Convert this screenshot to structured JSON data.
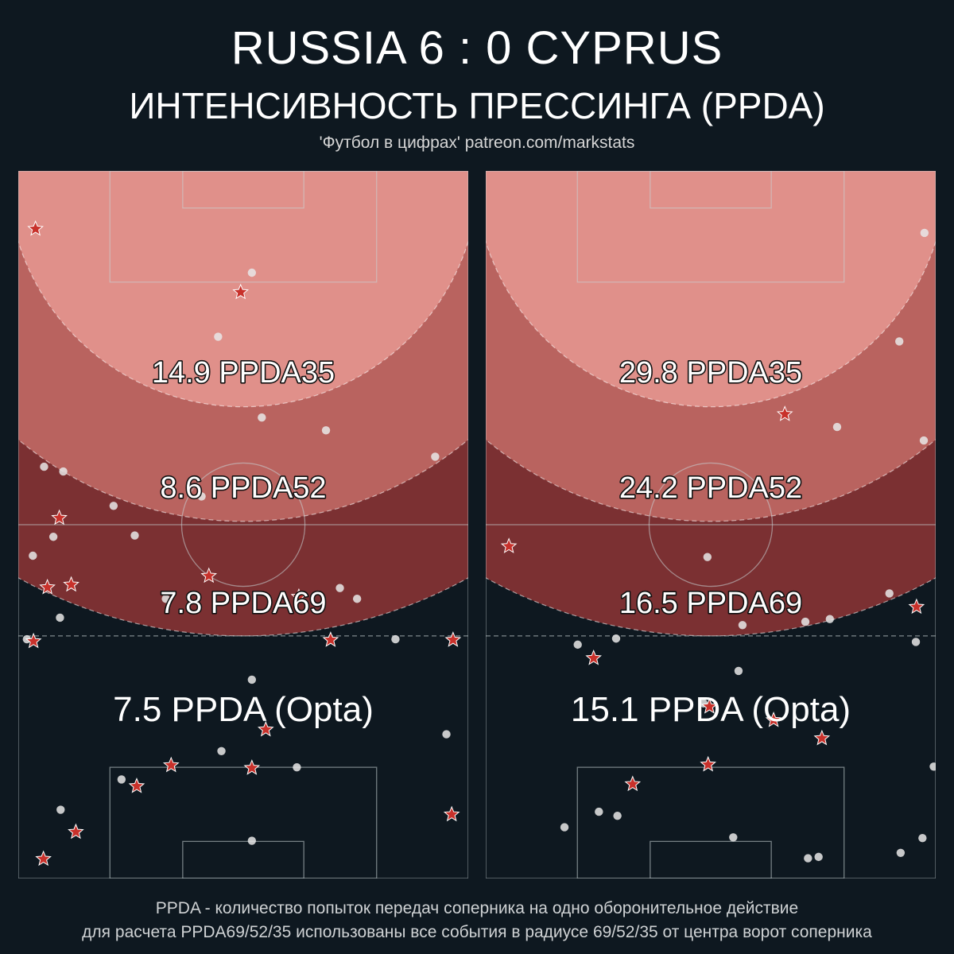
{
  "header": {
    "title": "RUSSIA  6 : 0  CYPRUS",
    "subtitle": "ИНТЕНСИВНОСТЬ ПРЕССИНГА (PPDA)",
    "source": "'Футбол в цифрах' patreon.com/markstats"
  },
  "footer": {
    "line1": "PPDA - количество попыток передач соперника на одно оборонительное действие",
    "line2": "для расчета PPDA69/52/35 использованы все события в радиусе 69/52/35 от центра ворот соперника"
  },
  "colors": {
    "background": "#0e1820",
    "zone35": "#e0908a",
    "zone52": "#b9635f",
    "zone69": "#7b3032",
    "star": "#c8312b",
    "dot": "#e8e8e8"
  },
  "chart_data": [
    {
      "type": "scatter",
      "team": "RUSSIA",
      "labels": {
        "ppda35": "14.9 PPDA35",
        "ppda52": "8.6 PPDA52",
        "ppda69": "7.8 PPDA69",
        "opta": "7.5 PPDA (Opta)"
      },
      "values": {
        "ppda35": 14.9,
        "ppda52": 8.6,
        "ppda69": 7.8,
        "opta": 7.5
      },
      "x_range": [
        0,
        68
      ],
      "y_range": [
        0,
        105
      ],
      "stars": [
        [
          2.6,
          8.6
        ],
        [
          33.6,
          18.0
        ],
        [
          6.2,
          51.5
        ],
        [
          4.4,
          61.8
        ],
        [
          8.0,
          61.4
        ],
        [
          28.8,
          60.1
        ],
        [
          42.4,
          63.2
        ],
        [
          2.3,
          69.8
        ],
        [
          47.2,
          69.6
        ],
        [
          65.7,
          69.6
        ],
        [
          37.4,
          82.9
        ],
        [
          23.1,
          88.2
        ],
        [
          35.3,
          88.6
        ],
        [
          17.9,
          91.3
        ],
        [
          8.7,
          98.1
        ],
        [
          65.5,
          95.5
        ],
        [
          3.8,
          102.1
        ]
      ],
      "dots": [
        [
          35.3,
          15.1
        ],
        [
          30.2,
          24.6
        ],
        [
          36.8,
          36.6
        ],
        [
          46.5,
          38.5
        ],
        [
          3.9,
          43.9
        ],
        [
          6.8,
          44.6
        ],
        [
          27.7,
          48.3
        ],
        [
          14.4,
          49.7
        ],
        [
          5.3,
          54.3
        ],
        [
          17.6,
          54.1
        ],
        [
          2.2,
          57.1
        ],
        [
          22.3,
          63.5
        ],
        [
          48.6,
          61.9
        ],
        [
          51.2,
          63.5
        ],
        [
          6.3,
          66.3
        ],
        [
          1.3,
          69.5
        ],
        [
          57.0,
          69.5
        ],
        [
          35.3,
          75.5
        ],
        [
          64.7,
          83.6
        ],
        [
          30.7,
          86.1
        ],
        [
          42.1,
          88.5
        ],
        [
          15.6,
          90.3
        ],
        [
          6.4,
          94.8
        ],
        [
          35.3,
          99.4
        ],
        [
          63.0,
          42.4
        ]
      ]
    },
    {
      "type": "scatter",
      "team": "CYPRUS",
      "labels": {
        "ppda35": "29.8 PPDA35",
        "ppda52": "24.2 PPDA52",
        "ppda69": "16.5 PPDA69",
        "opta": "15.1 PPDA (Opta)"
      },
      "values": {
        "ppda35": 29.8,
        "ppda52": 24.2,
        "ppda69": 16.5,
        "opta": 15.1
      },
      "x_range": [
        0,
        68
      ],
      "y_range": [
        0,
        105
      ],
      "stars": [
        [
          45.2,
          36.1
        ],
        [
          3.5,
          55.7
        ],
        [
          65.1,
          64.7
        ],
        [
          16.3,
          72.3
        ],
        [
          33.8,
          79.5
        ],
        [
          50.8,
          84.2
        ],
        [
          43.5,
          81.5
        ],
        [
          33.6,
          88.1
        ],
        [
          22.2,
          91.0
        ]
      ],
      "dots": [
        [
          66.3,
          9.2
        ],
        [
          62.5,
          25.3
        ],
        [
          53.1,
          38.0
        ],
        [
          66.2,
          40.0
        ],
        [
          33.5,
          57.3
        ],
        [
          61.0,
          62.7
        ],
        [
          52.0,
          66.5
        ],
        [
          38.8,
          67.4
        ],
        [
          19.7,
          69.4
        ],
        [
          65.0,
          69.9
        ],
        [
          48.3,
          66.9
        ],
        [
          13.9,
          70.3
        ],
        [
          32.9,
          79.0
        ],
        [
          38.2,
          74.2
        ],
        [
          67.7,
          88.4
        ],
        [
          17.1,
          95.1
        ],
        [
          11.9,
          97.4
        ],
        [
          19.9,
          95.7
        ],
        [
          37.4,
          98.9
        ],
        [
          66.0,
          99.0
        ],
        [
          62.7,
          101.2
        ],
        [
          48.7,
          102.0
        ],
        [
          50.3,
          101.8
        ]
      ]
    }
  ]
}
